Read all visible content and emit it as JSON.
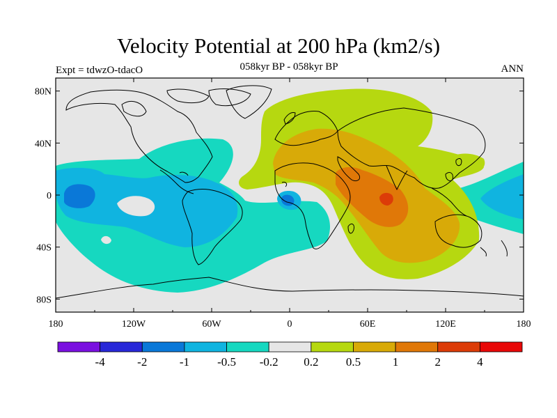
{
  "title": "Velocity Potential at 200 hPa (km2/s)",
  "subtitle": "058kyr BP - 058kyr BP",
  "experiment": "Expt = tdwzO-tdacO",
  "season": "ANN",
  "map": {
    "projection": "cylindrical equidistant",
    "lon_range": [
      -180,
      180
    ],
    "lat_range": [
      -90,
      90
    ],
    "land_outline": "coastlines",
    "x_ticks": [
      {
        "lon": -180,
        "label": "180"
      },
      {
        "lon": -120,
        "label": "120W"
      },
      {
        "lon": -60,
        "label": "60W"
      },
      {
        "lon": 0,
        "label": "0"
      },
      {
        "lon": 60,
        "label": "60E"
      },
      {
        "lon": 120,
        "label": "120E"
      },
      {
        "lon": 180,
        "label": "180"
      }
    ],
    "y_ticks": [
      {
        "lat": 80,
        "label": "80N"
      },
      {
        "lat": 40,
        "label": "40N"
      },
      {
        "lat": 0,
        "label": "0"
      },
      {
        "lat": -40,
        "label": "40S"
      },
      {
        "lat": -80,
        "label": "80S"
      }
    ],
    "centers": [
      {
        "name": "positive-max-indian-ocean",
        "lon": 75,
        "lat": 0,
        "level": "2 to 4"
      },
      {
        "name": "negative-min-central-pacific",
        "lon": -150,
        "lat": -2,
        "level": "-2 to -1"
      },
      {
        "name": "negative-min-gulf-of-guinea",
        "lon": -2,
        "lat": -3,
        "level": "-2 to -1"
      }
    ]
  },
  "colorbar": {
    "colors": [
      "#7a10e0",
      "#2828d8",
      "#0a78d8",
      "#10b4e0",
      "#16d8c0",
      "#e6e6e6",
      "#b6d810",
      "#d8aa08",
      "#e07808",
      "#dc3c08",
      "#e80808"
    ],
    "labels": [
      "-4",
      "-2",
      "-1",
      "-0.5",
      "-0.2",
      "0.2",
      "0.5",
      "1",
      "2",
      "4"
    ]
  }
}
